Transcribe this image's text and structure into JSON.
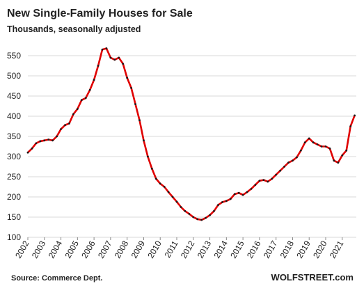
{
  "chart_data": {
    "type": "line",
    "title": "New Single-Family Houses for Sale",
    "subtitle": "Thousands, seasonally adjusted",
    "source": "Source: Commerce Dept.",
    "brand": "WOLFSTREET.com",
    "x": [
      2002,
      2002.25,
      2002.5,
      2002.75,
      2003,
      2003.25,
      2003.5,
      2003.75,
      2004,
      2004.25,
      2004.5,
      2004.75,
      2005,
      2005.25,
      2005.5,
      2005.75,
      2006,
      2006.25,
      2006.5,
      2006.75,
      2007,
      2007.25,
      2007.5,
      2007.75,
      2008,
      2008.25,
      2008.5,
      2008.75,
      2009,
      2009.25,
      2009.5,
      2009.75,
      2010,
      2010.25,
      2010.5,
      2010.75,
      2011,
      2011.25,
      2011.5,
      2011.75,
      2012,
      2012.25,
      2012.5,
      2012.75,
      2013,
      2013.25,
      2013.5,
      2013.75,
      2014,
      2014.25,
      2014.5,
      2014.75,
      2015,
      2015.25,
      2015.5,
      2015.75,
      2016,
      2016.25,
      2016.5,
      2016.75,
      2017,
      2017.25,
      2017.5,
      2017.75,
      2018,
      2018.25,
      2018.5,
      2018.75,
      2019,
      2019.25,
      2019.5,
      2019.75,
      2020,
      2020.25,
      2020.5,
      2020.75,
      2021,
      2021.25,
      2021.5,
      2021.75
    ],
    "series": [
      {
        "color": "#e00000",
        "marker_color": "#1a1a1a",
        "values": [
          310,
          320,
          333,
          338,
          340,
          342,
          340,
          350,
          368,
          378,
          382,
          405,
          418,
          440,
          445,
          465,
          490,
          525,
          565,
          568,
          545,
          540,
          545,
          530,
          495,
          470,
          430,
          390,
          340,
          300,
          270,
          245,
          233,
          225,
          212,
          200,
          188,
          175,
          165,
          158,
          150,
          145,
          143,
          148,
          155,
          165,
          180,
          187,
          190,
          195,
          207,
          210,
          205,
          212,
          220,
          230,
          240,
          242,
          238,
          245,
          255,
          265,
          275,
          285,
          290,
          298,
          315,
          335,
          345,
          335,
          330,
          325,
          325,
          320,
          290,
          285,
          303,
          315,
          375,
          402
        ]
      }
    ],
    "xlim": [
      2002,
      2021.85
    ],
    "xticks": [
      2002,
      2003,
      2004,
      2005,
      2006,
      2007,
      2008,
      2009,
      2010,
      2011,
      2012,
      2013,
      2014,
      2015,
      2016,
      2017,
      2018,
      2019,
      2020,
      2021
    ],
    "ylim": [
      100,
      575
    ],
    "yticks": [
      100,
      150,
      200,
      250,
      300,
      350,
      400,
      450,
      500,
      550
    ],
    "grid": true
  }
}
